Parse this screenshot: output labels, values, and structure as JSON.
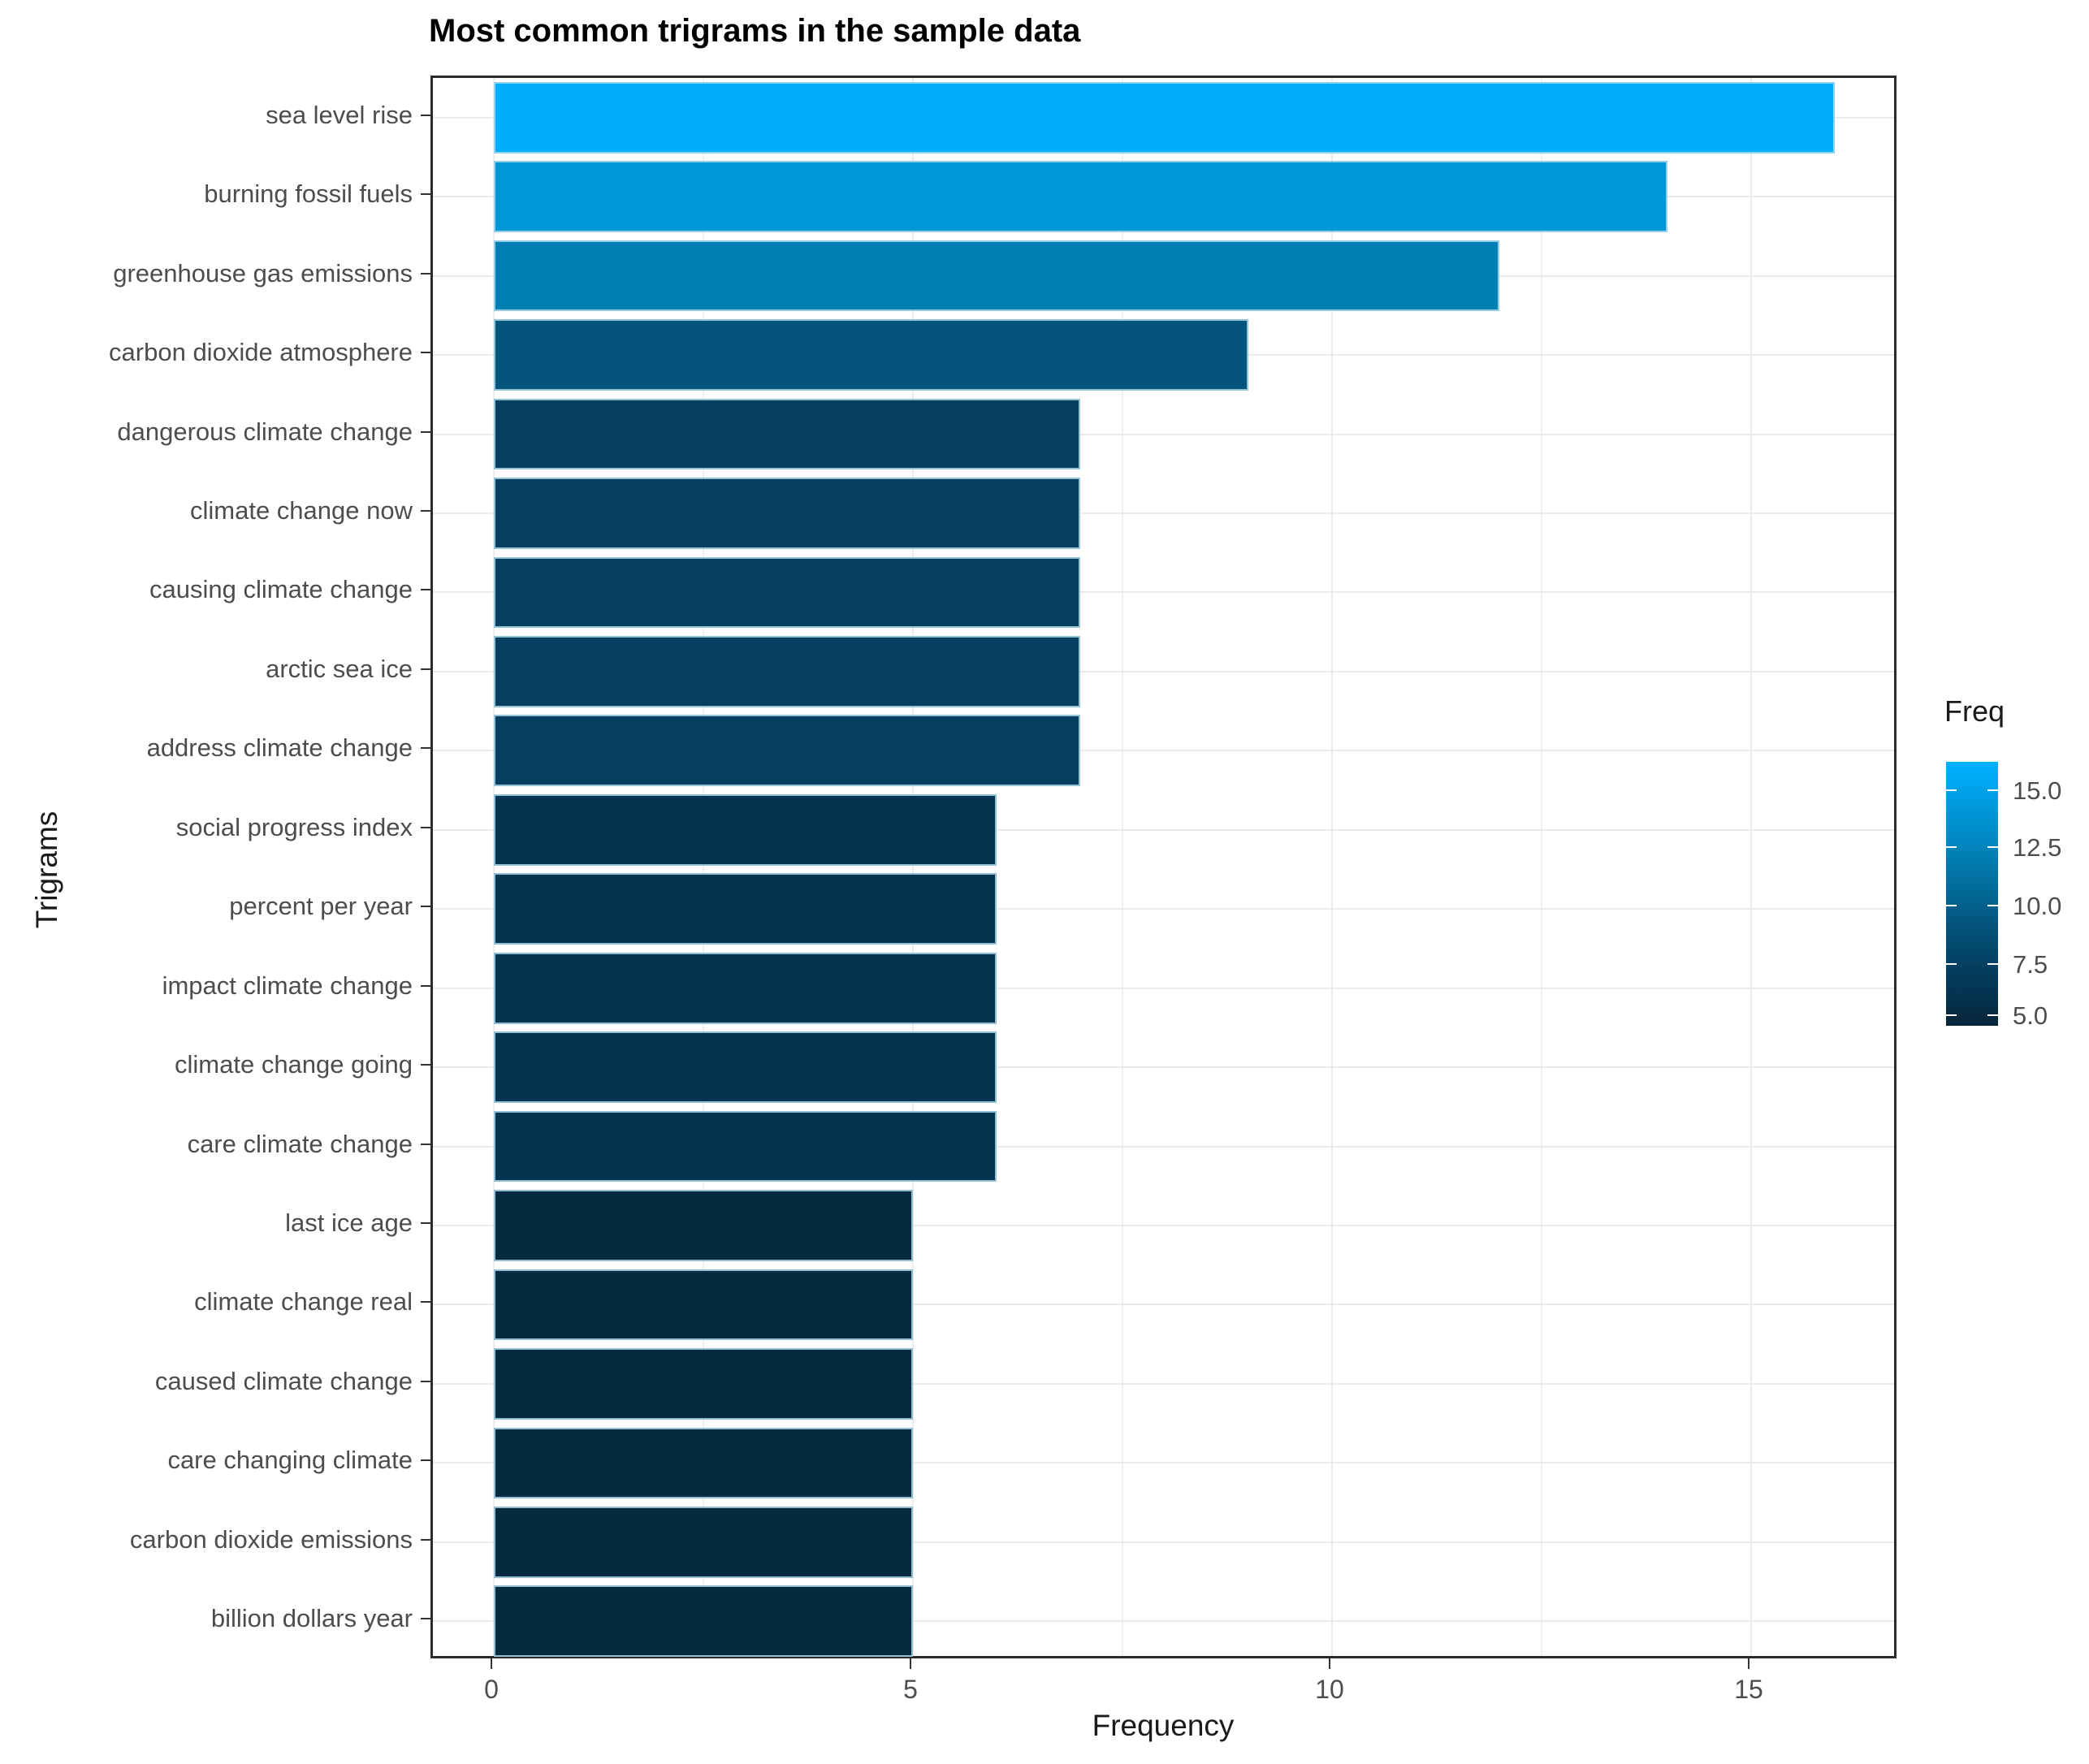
{
  "chart_data": {
    "type": "bar",
    "orientation": "horizontal",
    "title": "Most common trigrams in the sample data",
    "xlabel": "Frequency",
    "ylabel": "Trigrams",
    "categories": [
      "sea level rise",
      "burning fossil fuels",
      "greenhouse gas emissions",
      "carbon dioxide atmosphere",
      "dangerous climate change",
      "climate change now",
      "causing climate change",
      "arctic sea ice",
      "address climate change",
      "social progress index",
      "percent per year",
      "impact climate change",
      "climate change  going",
      "care climate change",
      "last ice age",
      "climate change real",
      "caused climate change",
      "care changing climate",
      "carbon dioxide emissions",
      "billion dollars year"
    ],
    "values": [
      16,
      14,
      12,
      9,
      7,
      7,
      7,
      7,
      7,
      6,
      6,
      6,
      6,
      6,
      5,
      5,
      5,
      5,
      5,
      5
    ],
    "bar_colors": [
      "#00AEFB",
      "#0097D9",
      "#017EB3",
      "#04547C",
      "#053E5E",
      "#053E5E",
      "#053E5E",
      "#053E5E",
      "#053E5E",
      "#033450",
      "#033450",
      "#033450",
      "#033450",
      "#033450",
      "#062A40",
      "#062A40",
      "#062A40",
      "#062A40",
      "#062A40",
      "#062A40"
    ],
    "x_ticks": [
      "0",
      "5",
      "10",
      "15"
    ],
    "x_tick_values": [
      0,
      5,
      10,
      15
    ],
    "x_minor_values": [
      2.5,
      7.5,
      12.5
    ],
    "xlim": [
      0,
      16.75
    ],
    "grid": "major and minor vertical, major horizontal per category",
    "legend": {
      "position": "right",
      "title": "Freq",
      "ticks": [
        {
          "label": "15.0",
          "pct": 10.8
        },
        {
          "label": "12.5",
          "pct": 32.3
        },
        {
          "label": "10.0",
          "pct": 54.5
        },
        {
          "label": "7.5",
          "pct": 76.6
        },
        {
          "label": "5.0",
          "pct": 96.0
        }
      ],
      "gradient_stops": [
        {
          "pct": 0,
          "color": "#00B3FF"
        },
        {
          "pct": 2,
          "color": "#00AEFB"
        },
        {
          "pct": 19,
          "color": "#0097D9"
        },
        {
          "pct": 36,
          "color": "#017EB3"
        },
        {
          "pct": 62,
          "color": "#04547C"
        },
        {
          "pct": 79,
          "color": "#053E5E"
        },
        {
          "pct": 88,
          "color": "#033450"
        },
        {
          "pct": 96,
          "color": "#062A40"
        },
        {
          "pct": 100,
          "color": "#05243A"
        }
      ]
    }
  }
}
